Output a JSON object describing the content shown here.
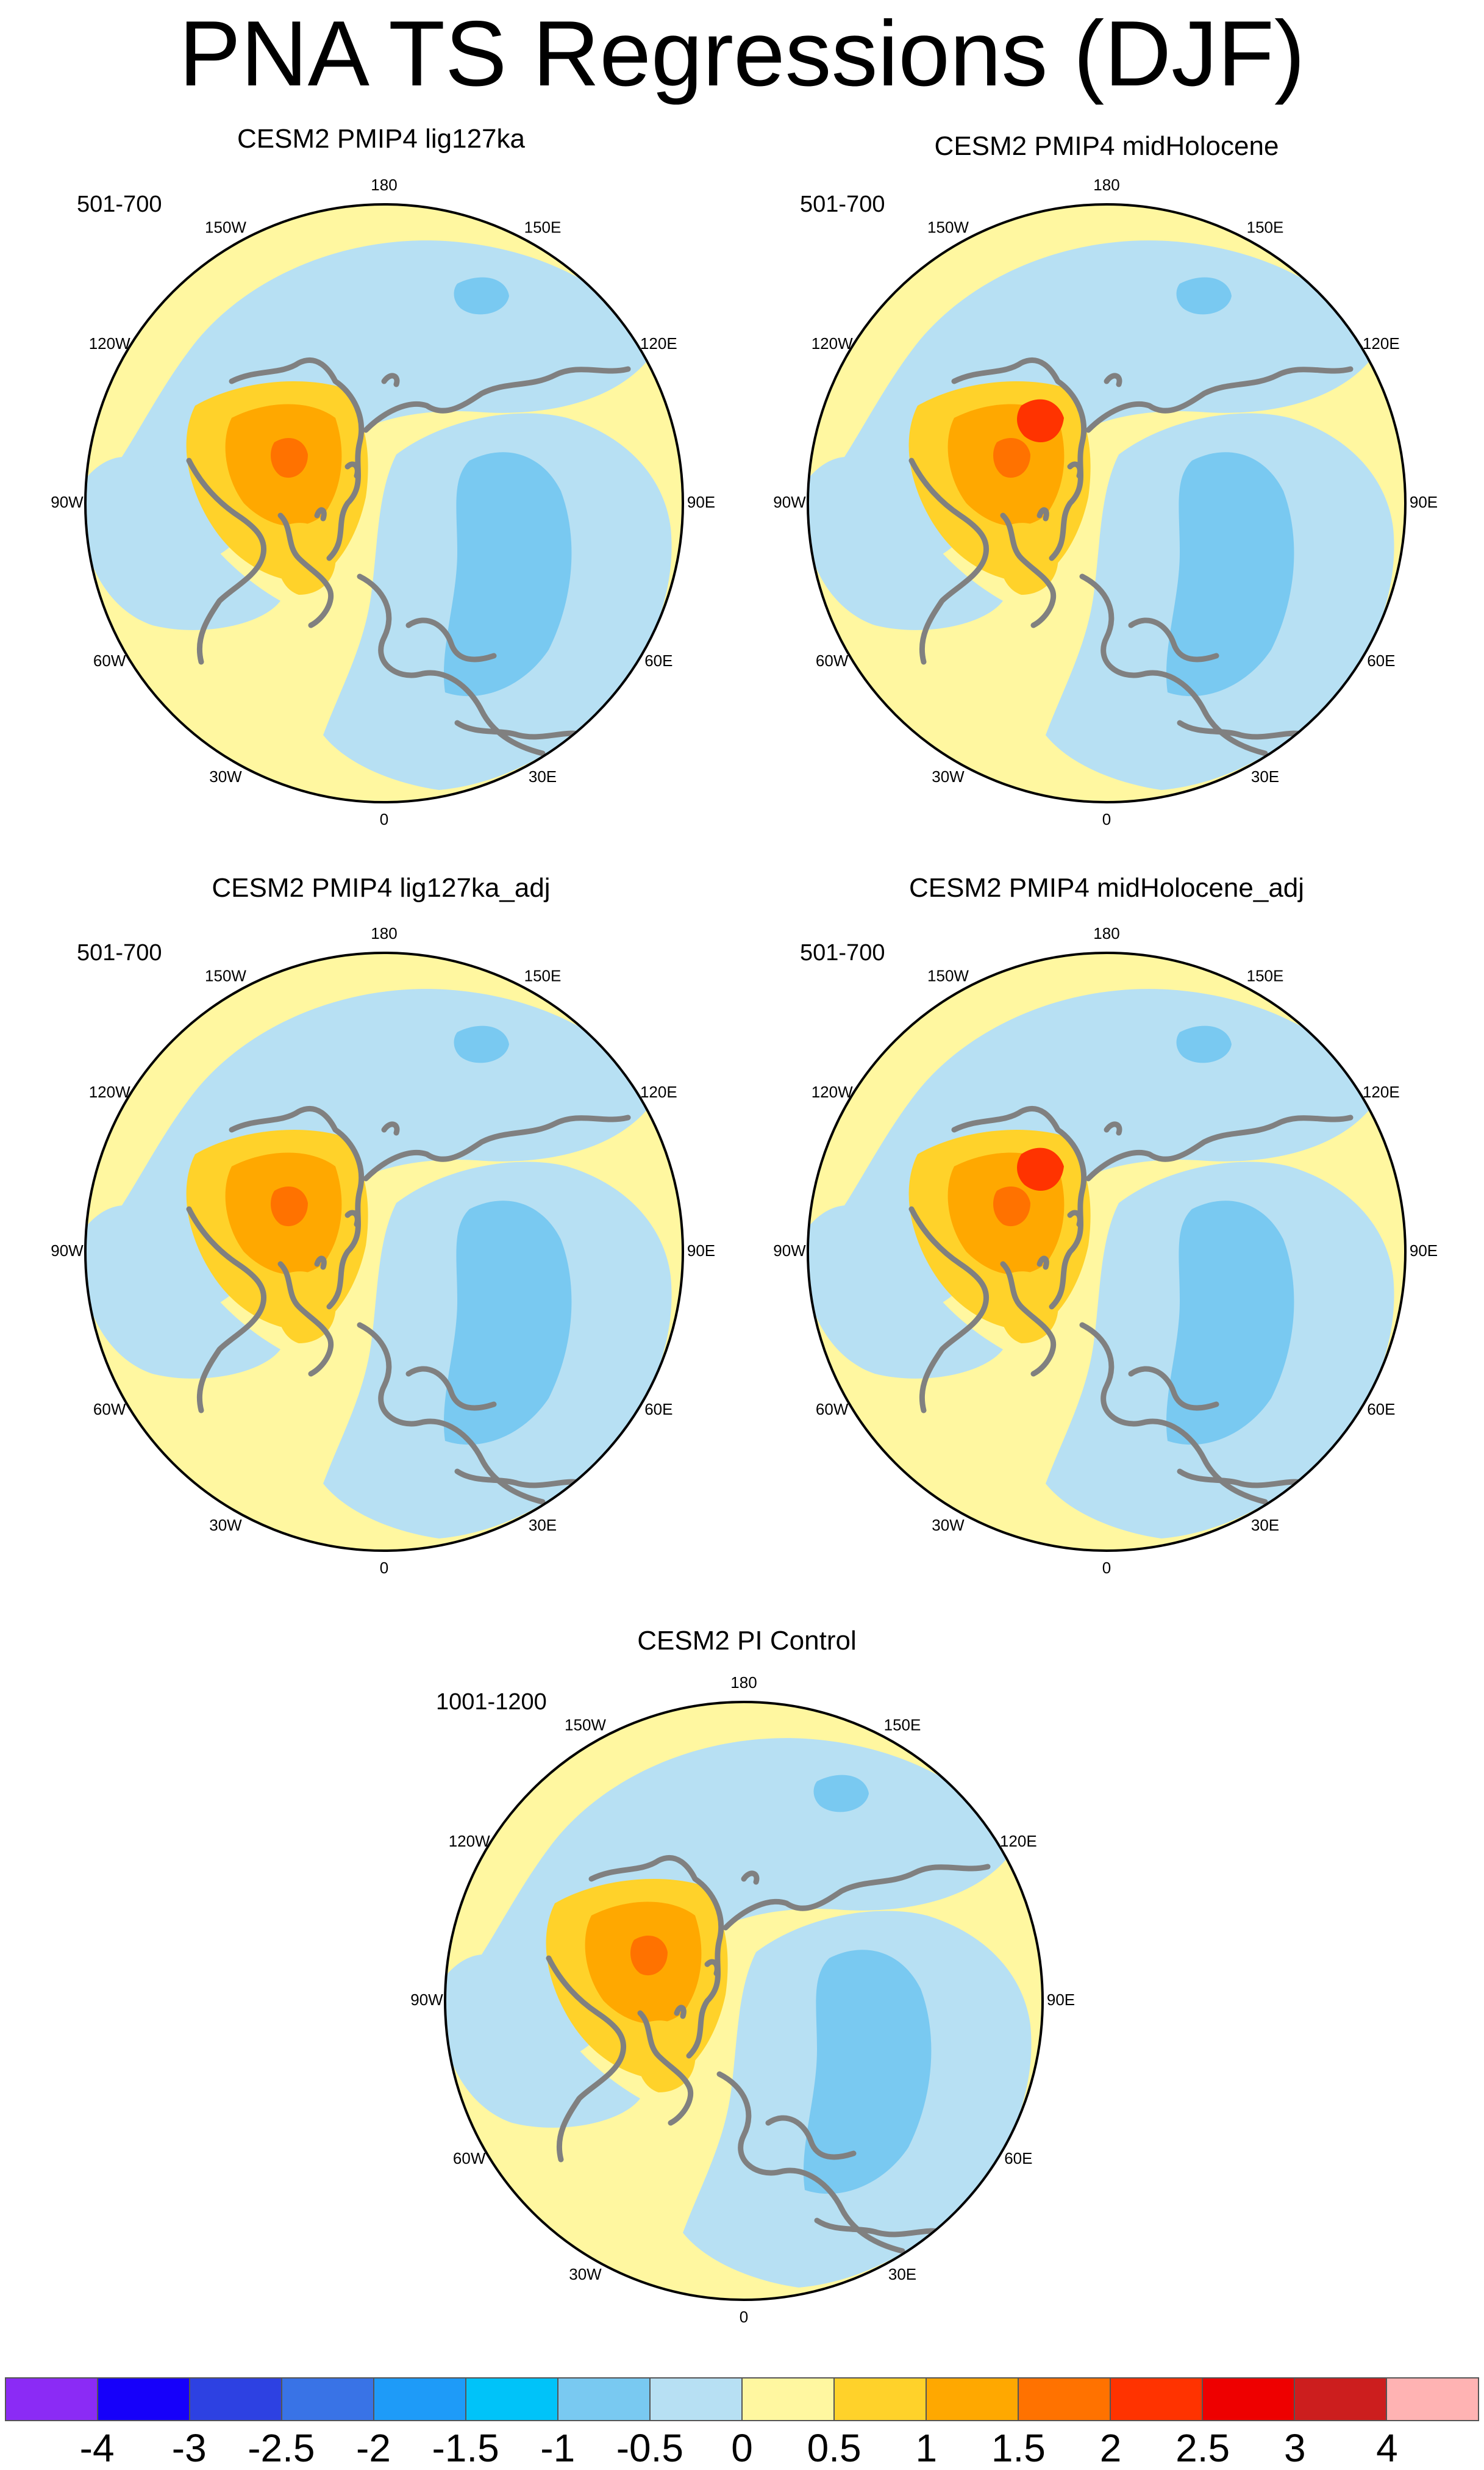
{
  "figure": {
    "title": "PNA TS Regressions (DJF)"
  },
  "map_data": {
    "type": "polar-stereographic-contour",
    "projection": "North Polar Stereographic",
    "variable": "TS regression on PNA index",
    "season": "DJF",
    "longitude_labels": [
      "180",
      "150E",
      "120E",
      "90E",
      "60E",
      "30E",
      "0",
      "30W",
      "60W",
      "90W",
      "120W",
      "150W"
    ],
    "panels": [
      {
        "title": "CESM2 PMIP4 lig127ka",
        "period": "501-700"
      },
      {
        "title": "CESM2 PMIP4 midHolocene",
        "period": "501-700"
      },
      {
        "title": "CESM2 PMIP4 lig127ka_adj",
        "period": "501-700"
      },
      {
        "title": "CESM2 PMIP4 midHolocene_adj",
        "period": "501-700"
      },
      {
        "title": "CESM2 PI Control",
        "period": "1001-1200"
      }
    ],
    "colorbar": {
      "labels": [
        "-4",
        "-3",
        "-2.5",
        "-2",
        "-1.5",
        "-1",
        "-0.5",
        "0",
        "0.5",
        "1",
        "1.5",
        "2",
        "2.5",
        "3",
        "4"
      ],
      "colors": [
        "#8B2BF5",
        "#1600FA",
        "#2D41E2",
        "#3973E6",
        "#1E9BF8",
        "#00C3F9",
        "#79C9F1",
        "#B7E0F3",
        "#FFF7A0",
        "#FFD22A",
        "#FFA800",
        "#FF7200",
        "#FF3300",
        "#EE0000",
        "#CC1E1E",
        "#FFB3B3"
      ]
    },
    "colors": {
      "coastline": "#808080",
      "frame": "#000000"
    }
  }
}
